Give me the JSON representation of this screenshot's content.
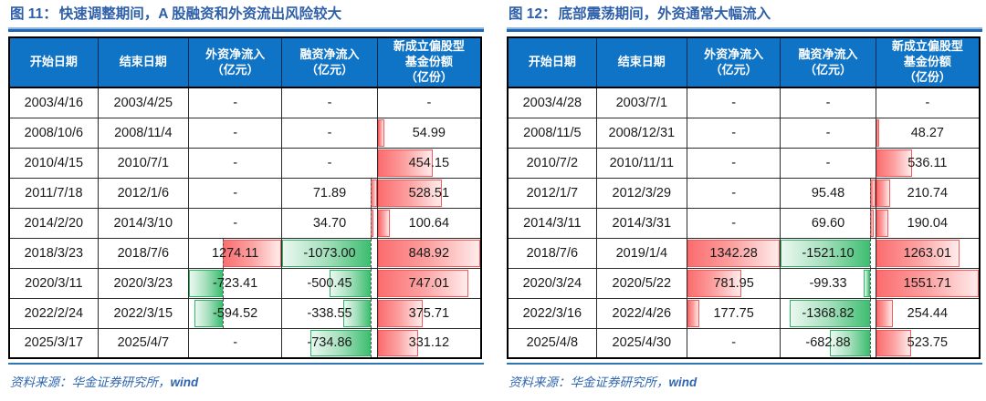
{
  "colors": {
    "header_blue": "#1074c6",
    "title_blue": "#2e5fa9",
    "rule_light_blue": "#8ab6e0",
    "rule_dark_blue": "#2166b4",
    "source_rule_blue": "#2e75b6",
    "positive_bar_red": "#fb6d6f",
    "negative_bar_green": "#3fbe72",
    "cell_text": "#1a1a1a"
  },
  "figures": [
    {
      "label": "图 11：",
      "title": "快速调整期间，A 股融资和外资流出风险较大",
      "headers": [
        [
          "开始日期"
        ],
        [
          "结束日期"
        ],
        [
          "外资净流入",
          "（亿元）"
        ],
        [
          "融资净流入",
          "（亿元）"
        ],
        [
          "新成立偏股型",
          "基金份额",
          "（亿份）"
        ]
      ],
      "rows": [
        [
          "2003/4/16",
          "2003/4/25",
          "-",
          "-",
          "-"
        ],
        [
          "2008/10/6",
          "2008/11/4",
          "-",
          "-",
          "54.99"
        ],
        [
          "2010/4/15",
          "2010/7/1",
          "-",
          "-",
          "454.15"
        ],
        [
          "2011/7/18",
          "2012/1/6",
          "-",
          "71.89",
          "528.51"
        ],
        [
          "2014/2/20",
          "2014/3/10",
          "-",
          "34.70",
          "100.64"
        ],
        [
          "2018/3/23",
          "2018/7/6",
          "1274.11",
          "-1073.00",
          "848.92"
        ],
        [
          "2020/3/11",
          "2020/3/23",
          "-723.41",
          "-500.45",
          "747.01"
        ],
        [
          "2022/2/24",
          "2022/3/15",
          "-594.52",
          "-338.55",
          "375.71"
        ],
        [
          "2025/3/17",
          "2025/4/7",
          "-",
          "-734.86",
          "331.12"
        ]
      ],
      "source_label": "资料来源：",
      "source_org": "华金证券研究所，",
      "source_suffix": "wind"
    },
    {
      "label": "图 12：",
      "title": "底部震荡期间，外资通常大幅流入",
      "headers": [
        [
          "开始日期"
        ],
        [
          "结束日期"
        ],
        [
          "外资净流入",
          "（亿元）"
        ],
        [
          "融资净流入",
          "（亿元）"
        ],
        [
          "新成立偏股型",
          "基金份额",
          "（亿份）"
        ]
      ],
      "rows": [
        [
          "2003/4/28",
          "2003/7/1",
          "-",
          "-",
          "-"
        ],
        [
          "2008/11/5",
          "2008/12/31",
          "-",
          "-",
          "48.27"
        ],
        [
          "2010/7/2",
          "2010/11/11",
          "-",
          "-",
          "536.11"
        ],
        [
          "2012/1/7",
          "2012/3/29",
          "-",
          "95.48",
          "210.74"
        ],
        [
          "2014/3/11",
          "2014/3/31",
          "-",
          "69.60",
          "190.04"
        ],
        [
          "2018/7/6",
          "2019/1/4",
          "1342.28",
          "-1521.10",
          "1263.01"
        ],
        [
          "2020/3/24",
          "2020/5/22",
          "781.95",
          "-99.33",
          "1551.71"
        ],
        [
          "2022/3/16",
          "2022/4/26",
          "177.75",
          "-1368.82",
          "254.44"
        ],
        [
          "2025/4/8",
          "2025/4/30",
          "-",
          "-682.88",
          "523.75"
        ]
      ],
      "source_label": "资料来源：",
      "source_org": "华金证券研究所，",
      "source_suffix": "wind"
    }
  ]
}
